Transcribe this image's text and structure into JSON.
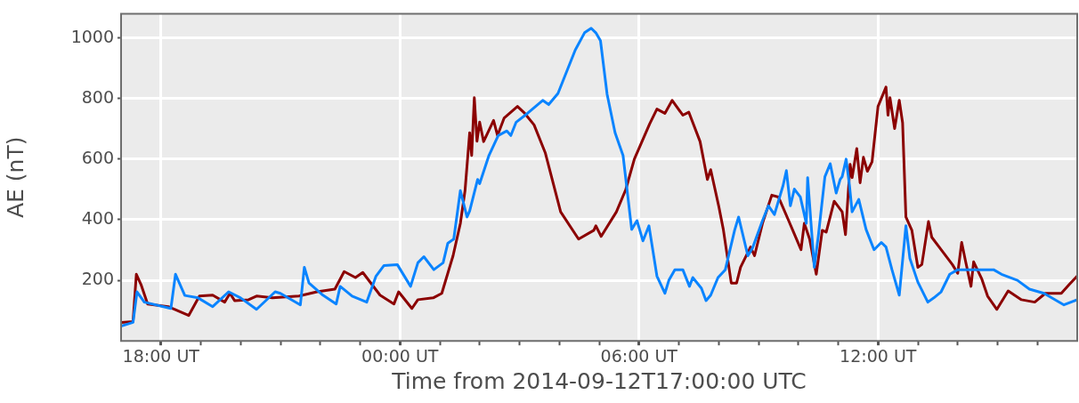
{
  "chart_data": {
    "type": "line",
    "xlabel": "Time from 2014-09-12T17:00:00 UTC",
    "ylabel": "AE (nT)",
    "xlim": [
      "2014-09-12T17:00",
      "2014-09-13T17:00"
    ],
    "xticks": [
      {
        "value": "2014-09-12T18:00",
        "label": "18:00 UT"
      },
      {
        "value": "2014-09-12T19:00",
        "label": null
      },
      {
        "value": "2014-09-12T20:00",
        "label": null
      },
      {
        "value": "2014-09-12T21:00",
        "label": null
      },
      {
        "value": "2014-09-12T22:00",
        "label": null
      },
      {
        "value": "2014-09-12T23:00",
        "label": null
      },
      {
        "value": "2014-09-13T00:00",
        "label": "00:00 UT"
      },
      {
        "value": "2014-09-13T01:00",
        "label": null
      },
      {
        "value": "2014-09-13T02:00",
        "label": null
      },
      {
        "value": "2014-09-13T03:00",
        "label": null
      },
      {
        "value": "2014-09-13T04:00",
        "label": null
      },
      {
        "value": "2014-09-13T05:00",
        "label": null
      },
      {
        "value": "2014-09-13T06:00",
        "label": "06:00 UT"
      },
      {
        "value": "2014-09-13T07:00",
        "label": null
      },
      {
        "value": "2014-09-13T08:00",
        "label": null
      },
      {
        "value": "2014-09-13T09:00",
        "label": null
      },
      {
        "value": "2014-09-13T10:00",
        "label": null
      },
      {
        "value": "2014-09-13T11:00",
        "label": null
      },
      {
        "value": "2014-09-13T12:00",
        "label": "12:00 UT"
      },
      {
        "value": "2014-09-13T13:00",
        "label": null
      },
      {
        "value": "2014-09-13T14:00",
        "label": null
      },
      {
        "value": "2014-09-13T15:00",
        "label": null
      },
      {
        "value": "2014-09-13T16:00",
        "label": null
      }
    ],
    "ylim": [
      0,
      1080
    ],
    "yticks": [
      200,
      400,
      600,
      800,
      1000
    ],
    "grid": true,
    "legend": false,
    "marker": "none",
    "line_style": "solid",
    "series": [
      {
        "color": "#0a84ff",
        "x": [
          "2014-09-12T17:00",
          "2014-09-12T17:18",
          "2014-09-12T17:24",
          "2014-09-12T17:35",
          "2014-09-12T18:15",
          "2014-09-12T18:22",
          "2014-09-12T18:36",
          "2014-09-12T18:56",
          "2014-09-12T19:18",
          "2014-09-12T19:42",
          "2014-09-12T20:00",
          "2014-09-12T20:24",
          "2014-09-12T20:52",
          "2014-09-12T21:00",
          "2014-09-12T21:30",
          "2014-09-12T21:36",
          "2014-09-12T21:43",
          "2014-09-12T22:04",
          "2014-09-12T22:24",
          "2014-09-12T22:30",
          "2014-09-12T22:48",
          "2014-09-12T23:10",
          "2014-09-12T23:24",
          "2014-09-12T23:36",
          "2014-09-12T23:56",
          "2014-09-13T00:16",
          "2014-09-13T00:27",
          "2014-09-13T00:36",
          "2014-09-13T00:51",
          "2014-09-13T01:05",
          "2014-09-13T01:12",
          "2014-09-13T01:21",
          "2014-09-13T01:31",
          "2014-09-13T01:41",
          "2014-09-13T01:45",
          "2014-09-13T01:57",
          "2014-09-13T02:00",
          "2014-09-13T02:14",
          "2014-09-13T02:28",
          "2014-09-13T02:41",
          "2014-09-13T02:47",
          "2014-09-13T02:55",
          "2014-09-13T03:12",
          "2014-09-13T03:35",
          "2014-09-13T03:44",
          "2014-09-13T03:58",
          "2014-09-13T04:06",
          "2014-09-13T04:24",
          "2014-09-13T04:38",
          "2014-09-13T04:48",
          "2014-09-13T04:55",
          "2014-09-13T05:02",
          "2014-09-13T05:12",
          "2014-09-13T05:24",
          "2014-09-13T05:36",
          "2014-09-13T05:49",
          "2014-09-13T05:57",
          "2014-09-13T06:06",
          "2014-09-13T06:15",
          "2014-09-13T06:27",
          "2014-09-13T06:39",
          "2014-09-13T06:45",
          "2014-09-13T06:54",
          "2014-09-13T07:06",
          "2014-09-13T07:16",
          "2014-09-13T07:21",
          "2014-09-13T07:34",
          "2014-09-13T07:41",
          "2014-09-13T07:48",
          "2014-09-13T07:59",
          "2014-09-13T08:10",
          "2014-09-13T08:24",
          "2014-09-13T08:30",
          "2014-09-13T08:44",
          "2014-09-13T08:51",
          "2014-09-13T09:06",
          "2014-09-13T09:15",
          "2014-09-13T09:24",
          "2014-09-13T09:37",
          "2014-09-13T09:42",
          "2014-09-13T09:48",
          "2014-09-13T09:54",
          "2014-09-13T10:03",
          "2014-09-13T10:12",
          "2014-09-13T10:14",
          "2014-09-13T10:24",
          "2014-09-13T10:30",
          "2014-09-13T10:40",
          "2014-09-13T10:48",
          "2014-09-13T10:57",
          "2014-09-13T11:03",
          "2014-09-13T11:06",
          "2014-09-13T11:12",
          "2014-09-13T11:17",
          "2014-09-13T11:21",
          "2014-09-13T11:31",
          "2014-09-13T11:42",
          "2014-09-13T11:54",
          "2014-09-13T12:05",
          "2014-09-13T12:12",
          "2014-09-13T12:21",
          "2014-09-13T12:32",
          "2014-09-13T12:42",
          "2014-09-13T12:48",
          "2014-09-13T13:00",
          "2014-09-13T13:15",
          "2014-09-13T13:24",
          "2014-09-13T13:35",
          "2014-09-13T13:48",
          "2014-09-13T14:00",
          "2014-09-13T14:24",
          "2014-09-13T14:54",
          "2014-09-13T15:06",
          "2014-09-13T15:30",
          "2014-09-13T15:48",
          "2014-09-13T16:10",
          "2014-09-13T16:40",
          "2014-09-13T17:00"
        ],
        "values": [
          49,
          61,
          162,
          128,
          107,
          220,
          150,
          142,
          113,
          162,
          142,
          104,
          162,
          157,
          119,
          243,
          191,
          151,
          122,
          180,
          148,
          128,
          214,
          249,
          252,
          180,
          258,
          278,
          235,
          258,
          322,
          336,
          496,
          409,
          429,
          533,
          519,
          612,
          678,
          693,
          678,
          722,
          751,
          794,
          780,
          817,
          861,
          960,
          1017,
          1032,
          1017,
          991,
          814,
          687,
          612,
          368,
          397,
          330,
          380,
          214,
          157,
          200,
          235,
          235,
          180,
          209,
          174,
          133,
          151,
          209,
          235,
          365,
          409,
          281,
          307,
          397,
          446,
          417,
          513,
          562,
          446,
          501,
          475,
          388,
          539,
          243,
          345,
          542,
          585,
          488,
          533,
          542,
          600,
          513,
          426,
          467,
          368,
          301,
          325,
          310,
          235,
          151,
          380,
          272,
          194,
          128,
          142,
          162,
          220,
          235,
          235,
          235,
          220,
          200,
          171,
          157,
          119,
          136
        ]
      },
      {
        "color": "#8b0000",
        "x": [
          "2014-09-12T17:00",
          "2014-09-12T17:18",
          "2014-09-12T17:23",
          "2014-09-12T17:30",
          "2014-09-12T17:40",
          "2014-09-12T18:11",
          "2014-09-12T18:42",
          "2014-09-12T18:58",
          "2014-09-12T19:18",
          "2014-09-12T19:36",
          "2014-09-12T19:44",
          "2014-09-12T19:51",
          "2014-09-12T20:12",
          "2014-09-12T20:24",
          "2014-09-12T20:48",
          "2014-09-12T21:28",
          "2014-09-12T21:55",
          "2014-09-12T22:22",
          "2014-09-12T22:36",
          "2014-09-12T22:53",
          "2014-09-12T23:04",
          "2014-09-12T23:30",
          "2014-09-12T23:51",
          "2014-09-12T23:58",
          "2014-09-13T00:18",
          "2014-09-13T00:27",
          "2014-09-13T00:50",
          "2014-09-13T01:03",
          "2014-09-13T01:20",
          "2014-09-13T01:31",
          "2014-09-13T01:38",
          "2014-09-13T01:45",
          "2014-09-13T01:48",
          "2014-09-13T01:52",
          "2014-09-13T01:56",
          "2014-09-13T02:00",
          "2014-09-13T02:06",
          "2014-09-13T02:21",
          "2014-09-13T02:27",
          "2014-09-13T02:37",
          "2014-09-13T02:57",
          "2014-09-13T03:08",
          "2014-09-13T03:22",
          "2014-09-13T03:39",
          "2014-09-13T04:02",
          "2014-09-13T04:29",
          "2014-09-13T04:52",
          "2014-09-13T04:55",
          "2014-09-13T05:03",
          "2014-09-13T05:26",
          "2014-09-13T05:40",
          "2014-09-13T05:53",
          "2014-09-13T06:16",
          "2014-09-13T06:27",
          "2014-09-13T06:39",
          "2014-09-13T06:50",
          "2014-09-13T07:06",
          "2014-09-13T07:15",
          "2014-09-13T07:32",
          "2014-09-13T07:43",
          "2014-09-13T07:48",
          "2014-09-13T08:00",
          "2014-09-13T08:07",
          "2014-09-13T08:19",
          "2014-09-13T08:27",
          "2014-09-13T08:33",
          "2014-09-13T08:48",
          "2014-09-13T08:54",
          "2014-09-13T09:06",
          "2014-09-13T09:20",
          "2014-09-13T09:30",
          "2014-09-13T09:46",
          "2014-09-13T10:04",
          "2014-09-13T10:09",
          "2014-09-13T10:17",
          "2014-09-13T10:27",
          "2014-09-13T10:36",
          "2014-09-13T10:42",
          "2014-09-13T10:54",
          "2014-09-13T11:06",
          "2014-09-13T11:11",
          "2014-09-13T11:18",
          "2014-09-13T11:21",
          "2014-09-13T11:28",
          "2014-09-13T11:33",
          "2014-09-13T11:38",
          "2014-09-13T11:44",
          "2014-09-13T11:51",
          "2014-09-13T12:00",
          "2014-09-13T12:12",
          "2014-09-13T12:15",
          "2014-09-13T12:18",
          "2014-09-13T12:25",
          "2014-09-13T12:32",
          "2014-09-13T12:37",
          "2014-09-13T12:42",
          "2014-09-13T12:51",
          "2014-09-13T13:00",
          "2014-09-13T13:06",
          "2014-09-13T13:16",
          "2014-09-13T13:21",
          "2014-09-13T13:32",
          "2014-09-13T13:52",
          "2014-09-13T14:00",
          "2014-09-13T14:06",
          "2014-09-13T14:12",
          "2014-09-13T14:20",
          "2014-09-13T14:24",
          "2014-09-13T14:36",
          "2014-09-13T14:45",
          "2014-09-13T14:59",
          "2014-09-13T15:16",
          "2014-09-13T15:36",
          "2014-09-13T15:56",
          "2014-09-13T16:12",
          "2014-09-13T16:36",
          "2014-09-13T16:48",
          "2014-09-13T17:00"
        ],
        "values": [
          61,
          64,
          220,
          186,
          122,
          113,
          84,
          148,
          151,
          128,
          157,
          133,
          136,
          148,
          142,
          148,
          162,
          171,
          229,
          209,
          226,
          151,
          122,
          162,
          107,
          136,
          142,
          157,
          281,
          388,
          496,
          687,
          612,
          803,
          659,
          722,
          658,
          728,
          678,
          736,
          774,
          751,
          713,
          620,
          426,
          336,
          365,
          380,
          345,
          426,
          499,
          600,
          716,
          765,
          751,
          794,
          745,
          755,
          658,
          533,
          565,
          446,
          368,
          191,
          191,
          243,
          310,
          281,
          388,
          481,
          475,
          394,
          301,
          388,
          336,
          220,
          365,
          359,
          461,
          426,
          351,
          583,
          539,
          635,
          522,
          606,
          560,
          591,
          774,
          838,
          745,
          803,
          701,
          794,
          720,
          409,
          365,
          243,
          252,
          394,
          342,
          310,
          252,
          223,
          325,
          261,
          180,
          261,
          206,
          148,
          104,
          165,
          136,
          128,
          157,
          157,
          186,
          214
        ]
      }
    ]
  }
}
